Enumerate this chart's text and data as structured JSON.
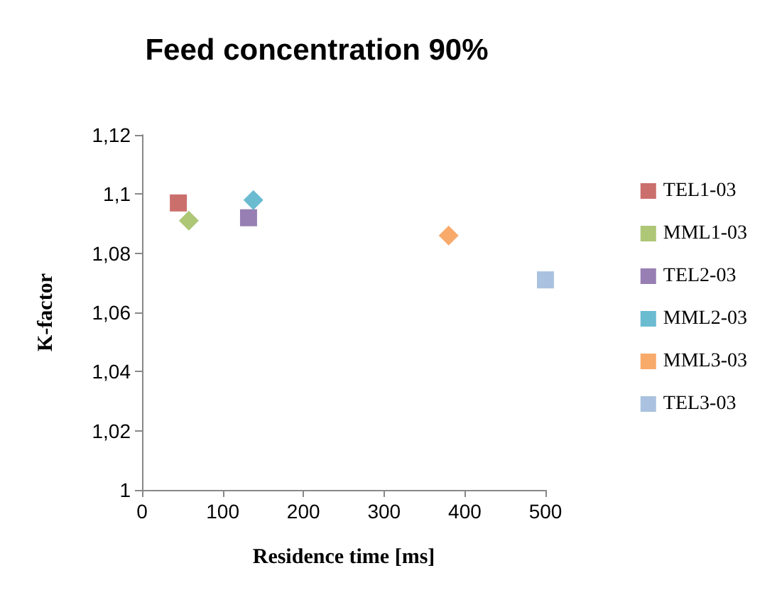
{
  "chart_data": {
    "type": "scatter",
    "title": "Feed concentration 90%",
    "xlabel": "Residence time [ms]",
    "ylabel": "K-factor",
    "xlim": [
      0,
      500
    ],
    "xticks": [
      0,
      100,
      200,
      300,
      400,
      500
    ],
    "ylim": [
      1,
      1.12
    ],
    "yticks": [
      1,
      {
        "value": 1.02,
        "label": "1,02"
      },
      {
        "value": 1.04,
        "label": "1,04"
      },
      {
        "value": 1.06,
        "label": "1,06"
      },
      {
        "value": 1.08,
        "label": "1,08"
      },
      {
        "value": 1.1,
        "label": "1,1"
      },
      {
        "value": 1.12,
        "label": "1,12"
      }
    ],
    "grid": false,
    "legend": "right",
    "series": [
      {
        "name": "TEL1-03",
        "color": "#be4b48",
        "marker": "square",
        "x": [
          45
        ],
        "values": [
          1.097
        ]
      },
      {
        "name": "MML1-03",
        "color": "#98b954",
        "marker": "diamond",
        "x": [
          58
        ],
        "values": [
          1.091
        ]
      },
      {
        "name": "TEL2-03",
        "color": "#7d5fa0",
        "marker": "square",
        "x": [
          132
        ],
        "values": [
          1.092
        ]
      },
      {
        "name": "MML2-03",
        "color": "#46aac5",
        "marker": "diamond",
        "x": [
          138
        ],
        "values": [
          1.098
        ]
      },
      {
        "name": "MML3-03",
        "color": "#f69546",
        "marker": "diamond",
        "x": [
          380
        ],
        "values": [
          1.086
        ]
      },
      {
        "name": "TEL3-03",
        "color": "#95b3d7",
        "marker": "square",
        "x": [
          500
        ],
        "values": [
          1.071
        ]
      }
    ]
  }
}
